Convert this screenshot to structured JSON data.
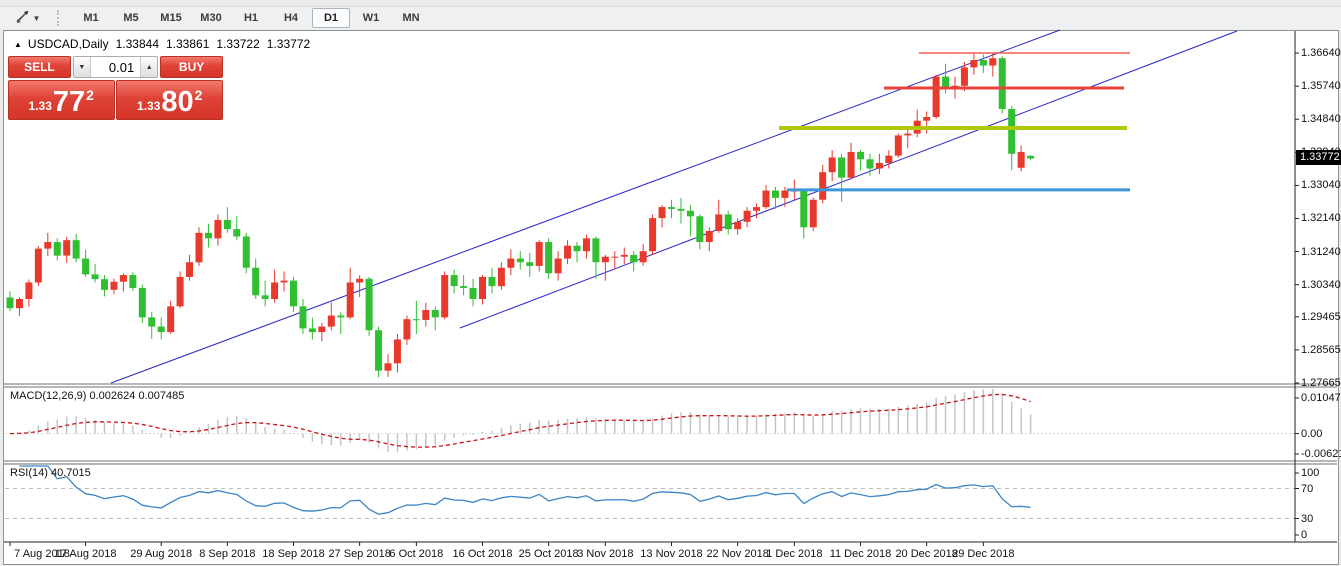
{
  "toolbar": {
    "timeframes": [
      "M1",
      "M5",
      "M15",
      "M30",
      "H1",
      "H4",
      "D1",
      "W1",
      "MN"
    ],
    "active": "D1"
  },
  "chart_header": {
    "symbol": "USDCAD,Daily",
    "open": "1.33844",
    "high": "1.33861",
    "low": "1.33722",
    "close": "1.33772"
  },
  "trade_panel": {
    "sell_label": "SELL",
    "buy_label": "BUY",
    "volume": "0.01",
    "sell_price": {
      "prefix": "1.33",
      "big": "77",
      "sup": "2"
    },
    "buy_price": {
      "prefix": "1.33",
      "big": "80",
      "sup": "2"
    }
  },
  "price_axis": {
    "ticks": [
      1.3664,
      1.3574,
      1.3484,
      1.3394,
      1.3304,
      1.3214,
      1.3124,
      1.3034,
      1.29465,
      1.28565,
      1.27665
    ],
    "tick_labels": [
      "1.36640",
      "1.35740",
      "1.34840",
      "1.33940",
      "1.33040",
      "1.32140",
      "1.31240",
      "1.30340",
      "1.29465",
      "1.28565",
      "1.27665"
    ],
    "current": "1.33772",
    "current_price": 1.33772
  },
  "macd_panel": {
    "label": "MACD(12,26,9)",
    "value_main": "0.002624",
    "value_signal": "0.007485",
    "axis_labels": [
      "0.010474",
      "0.00",
      "-0.006218"
    ],
    "range": [
      -0.006218,
      0.010474
    ]
  },
  "rsi_panel": {
    "label": "RSI(14)",
    "value": "40.7015",
    "axis_labels": [
      "100",
      "70",
      "30",
      "0"
    ],
    "levels": [
      70,
      30
    ]
  },
  "date_axis": [
    {
      "i": 0,
      "t": "7 Aug 2018"
    },
    {
      "i": 8,
      "t": "17 Aug 2018"
    },
    {
      "i": 16,
      "t": "29 Aug 2018"
    },
    {
      "i": 23,
      "t": "8 Sep 2018"
    },
    {
      "i": 30,
      "t": "18 Sep 2018"
    },
    {
      "i": 37,
      "t": "27 Sep 2018"
    },
    {
      "i": 43,
      "t": "6 Oct 2018"
    },
    {
      "i": 50,
      "t": "16 Oct 2018"
    },
    {
      "i": 57,
      "t": "25 Oct 2018"
    },
    {
      "i": 63,
      "t": "3 Nov 2018"
    },
    {
      "i": 70,
      "t": "13 Nov 2018"
    },
    {
      "i": 77,
      "t": "22 Nov 2018"
    },
    {
      "i": 83,
      "t": "1 Dec 2018"
    },
    {
      "i": 90,
      "t": "11 Dec 2018"
    },
    {
      "i": 97,
      "t": "20 Dec 2018"
    },
    {
      "i": 103,
      "t": "29 Dec 2018"
    }
  ],
  "chart_data": {
    "type": "candlestick",
    "symbol": "USDCAD",
    "period": "Daily",
    "ylim": [
      1.27665,
      1.3724
    ],
    "bull_color": "#e8392d",
    "bear_color": "#2fbf30",
    "candles": [
      [
        1.2999,
        1.3016,
        1.2962,
        1.297
      ],
      [
        1.297,
        1.3,
        1.2949,
        1.2995
      ],
      [
        1.2995,
        1.3048,
        1.2974,
        1.304
      ],
      [
        1.304,
        1.3139,
        1.303,
        1.3132
      ],
      [
        1.3132,
        1.3175,
        1.3112,
        1.315
      ],
      [
        1.315,
        1.316,
        1.31,
        1.3113
      ],
      [
        1.3113,
        1.3164,
        1.3093,
        1.3155
      ],
      [
        1.3155,
        1.3172,
        1.3095,
        1.3105
      ],
      [
        1.3105,
        1.313,
        1.3055,
        1.3062
      ],
      [
        1.3062,
        1.309,
        1.304,
        1.3049
      ],
      [
        1.3049,
        1.306,
        1.3002,
        1.302
      ],
      [
        1.302,
        1.305,
        1.3008,
        1.3042
      ],
      [
        1.3042,
        1.3065,
        1.3015,
        1.306
      ],
      [
        1.306,
        1.3068,
        1.3017,
        1.3025
      ],
      [
        1.3025,
        1.3035,
        1.293,
        1.2945
      ],
      [
        1.2945,
        1.296,
        1.2886,
        1.292
      ],
      [
        1.292,
        1.2945,
        1.2885,
        1.2905
      ],
      [
        1.2905,
        1.299,
        1.29,
        1.2975
      ],
      [
        1.2975,
        1.307,
        1.297,
        1.3055
      ],
      [
        1.3055,
        1.3115,
        1.3045,
        1.3095
      ],
      [
        1.3095,
        1.319,
        1.3085,
        1.3175
      ],
      [
        1.3175,
        1.32,
        1.3135,
        1.316
      ],
      [
        1.316,
        1.3225,
        1.314,
        1.321
      ],
      [
        1.321,
        1.3245,
        1.3175,
        1.3185
      ],
      [
        1.3185,
        1.322,
        1.3155,
        1.3165
      ],
      [
        1.3165,
        1.3175,
        1.3065,
        1.308
      ],
      [
        1.308,
        1.3105,
        1.2995,
        1.3005
      ],
      [
        1.3005,
        1.3045,
        1.2975,
        1.2995
      ],
      [
        1.2995,
        1.3075,
        1.2985,
        1.304
      ],
      [
        1.304,
        1.307,
        1.3015,
        1.3045
      ],
      [
        1.3045,
        1.3055,
        1.296,
        1.2975
      ],
      [
        1.2975,
        1.2995,
        1.29,
        1.2915
      ],
      [
        1.2915,
        1.2945,
        1.2885,
        1.2905
      ],
      [
        1.2905,
        1.293,
        1.288,
        1.292
      ],
      [
        1.292,
        1.2985,
        1.291,
        1.295
      ],
      [
        1.295,
        1.296,
        1.29,
        1.2945
      ],
      [
        1.2945,
        1.308,
        1.294,
        1.304
      ],
      [
        1.304,
        1.306,
        1.3,
        1.305
      ],
      [
        1.305,
        1.3055,
        1.2895,
        1.291
      ],
      [
        1.291,
        1.292,
        1.2782,
        1.28
      ],
      [
        1.28,
        1.2845,
        1.2783,
        1.282
      ],
      [
        1.282,
        1.29,
        1.2795,
        1.2885
      ],
      [
        1.2885,
        1.295,
        1.287,
        1.294
      ],
      [
        1.294,
        1.299,
        1.29,
        1.2938
      ],
      [
        1.2938,
        1.2985,
        1.292,
        1.2965
      ],
      [
        1.2965,
        1.2975,
        1.291,
        1.2945
      ],
      [
        1.2945,
        1.307,
        1.294,
        1.306
      ],
      [
        1.306,
        1.3075,
        1.301,
        1.303
      ],
      [
        1.303,
        1.306,
        1.3005,
        1.3025
      ],
      [
        1.3025,
        1.305,
        1.2975,
        1.2995
      ],
      [
        1.2995,
        1.306,
        1.298,
        1.3055
      ],
      [
        1.3055,
        1.308,
        1.301,
        1.303
      ],
      [
        1.303,
        1.3095,
        1.302,
        1.308
      ],
      [
        1.308,
        1.313,
        1.306,
        1.3105
      ],
      [
        1.3105,
        1.3125,
        1.3075,
        1.3095
      ],
      [
        1.3095,
        1.312,
        1.3055,
        1.3085
      ],
      [
        1.3085,
        1.3155,
        1.307,
        1.315
      ],
      [
        1.315,
        1.316,
        1.305,
        1.3065
      ],
      [
        1.3065,
        1.3125,
        1.3045,
        1.3105
      ],
      [
        1.3105,
        1.3155,
        1.309,
        1.314
      ],
      [
        1.314,
        1.315,
        1.3095,
        1.3125
      ],
      [
        1.3125,
        1.317,
        1.3105,
        1.316
      ],
      [
        1.316,
        1.3165,
        1.305,
        1.3095
      ],
      [
        1.3095,
        1.3115,
        1.3045,
        1.311
      ],
      [
        1.311,
        1.3125,
        1.3075,
        1.311
      ],
      [
        1.311,
        1.3135,
        1.309,
        1.3115
      ],
      [
        1.3115,
        1.3125,
        1.307,
        1.3095
      ],
      [
        1.3095,
        1.3145,
        1.3085,
        1.3125
      ],
      [
        1.3125,
        1.3225,
        1.3115,
        1.3215
      ],
      [
        1.3215,
        1.325,
        1.319,
        1.3245
      ],
      [
        1.3245,
        1.3265,
        1.3215,
        1.324
      ],
      [
        1.324,
        1.327,
        1.32,
        1.3235
      ],
      [
        1.3235,
        1.325,
        1.3165,
        1.322
      ],
      [
        1.322,
        1.3225,
        1.313,
        1.315
      ],
      [
        1.315,
        1.319,
        1.3125,
        1.318
      ],
      [
        1.318,
        1.3265,
        1.3175,
        1.3225
      ],
      [
        1.3225,
        1.3235,
        1.317,
        1.3185
      ],
      [
        1.3185,
        1.3215,
        1.317,
        1.3205
      ],
      [
        1.3205,
        1.3245,
        1.319,
        1.3235
      ],
      [
        1.3235,
        1.3255,
        1.3215,
        1.3245
      ],
      [
        1.3245,
        1.3305,
        1.324,
        1.329
      ],
      [
        1.329,
        1.33,
        1.324,
        1.327
      ],
      [
        1.327,
        1.33,
        1.3245,
        1.329
      ],
      [
        1.329,
        1.332,
        1.3265,
        1.329
      ],
      [
        1.329,
        1.3295,
        1.316,
        1.319
      ],
      [
        1.319,
        1.327,
        1.318,
        1.3265
      ],
      [
        1.3265,
        1.336,
        1.3255,
        1.334
      ],
      [
        1.334,
        1.34,
        1.3315,
        1.338
      ],
      [
        1.338,
        1.339,
        1.326,
        1.3325
      ],
      [
        1.3325,
        1.342,
        1.332,
        1.3395
      ],
      [
        1.3395,
        1.34,
        1.3345,
        1.3375
      ],
      [
        1.3375,
        1.339,
        1.333,
        1.335
      ],
      [
        1.335,
        1.339,
        1.3335,
        1.3365
      ],
      [
        1.3365,
        1.34,
        1.335,
        1.3385
      ],
      [
        1.3385,
        1.3445,
        1.338,
        1.344
      ],
      [
        1.344,
        1.3465,
        1.3405,
        1.3445
      ],
      [
        1.3445,
        1.351,
        1.3435,
        1.348
      ],
      [
        1.348,
        1.3505,
        1.3445,
        1.349
      ],
      [
        1.349,
        1.3605,
        1.3485,
        1.36
      ],
      [
        1.36,
        1.3635,
        1.3555,
        1.3565
      ],
      [
        1.3565,
        1.36,
        1.354,
        1.3575
      ],
      [
        1.3575,
        1.364,
        1.356,
        1.3625
      ],
      [
        1.3625,
        1.3664,
        1.3605,
        1.3645
      ],
      [
        1.3645,
        1.366,
        1.361,
        1.363
      ],
      [
        1.363,
        1.3664,
        1.36,
        1.365
      ],
      [
        1.365,
        1.3655,
        1.35,
        1.3512
      ],
      [
        1.3512,
        1.352,
        1.3345,
        1.339
      ],
      [
        1.3352,
        1.3412,
        1.3342,
        1.3395
      ],
      [
        1.33844,
        1.33861,
        1.33722,
        1.33772
      ]
    ],
    "hlines": [
      {
        "price": 1.3664,
        "color": "#f15b52",
        "width": 1.5,
        "x1": 919,
        "x2": 1130
      },
      {
        "price": 1.3569,
        "color": "#e7423a",
        "width": 3,
        "x1": 884,
        "x2": 1124
      },
      {
        "price": 1.346,
        "color": "#b0c70c",
        "width": 4,
        "x1": 779,
        "x2": 1127
      },
      {
        "price": 1.3292,
        "color": "#3b97d9",
        "width": 3,
        "x1": 787,
        "x2": 1130
      }
    ],
    "trendlines": [
      {
        "role": "channel-upper",
        "x1": 111,
        "y1": 383,
        "x2": 1060,
        "y2": 30,
        "color": "#2525c8"
      },
      {
        "role": "channel-lower",
        "x1": 460,
        "y1": 328,
        "x2": 1237,
        "y2": 31,
        "color": "#2525c8"
      }
    ],
    "macd": {
      "fast": 12,
      "slow": 26,
      "signal": 9,
      "range": [
        -0.006218,
        0.010474
      ],
      "bar_color": "#c4c4c4",
      "signal_color": "#cc1111"
    },
    "rsi": {
      "period": 14,
      "range": [
        0,
        100
      ],
      "levels": [
        70,
        30
      ],
      "line_color": "#3d85c6"
    }
  }
}
